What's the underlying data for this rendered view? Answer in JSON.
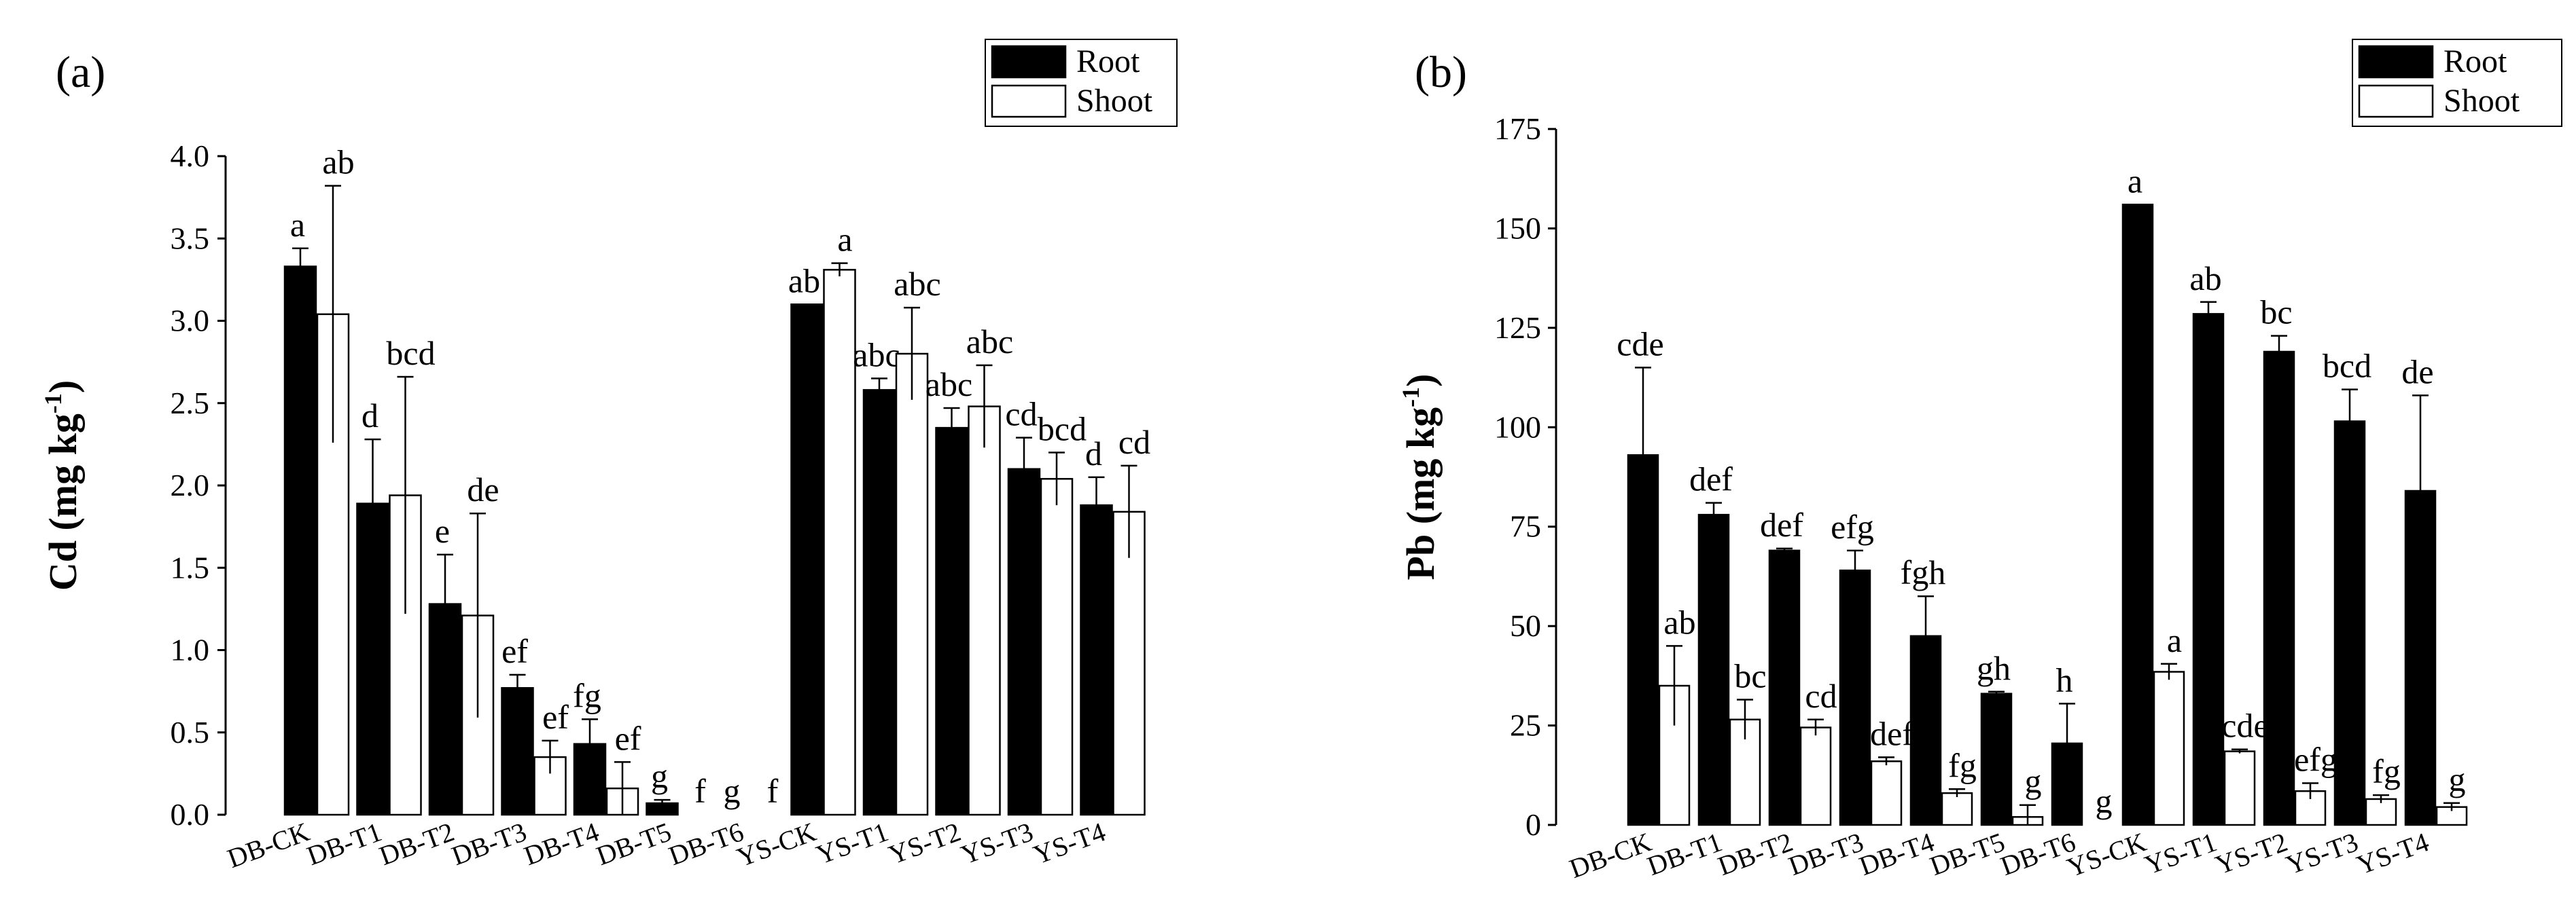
{
  "chart_data": [
    {
      "type": "bar",
      "panel_label": "(a)",
      "ylabel": "Cd (mg kg",
      "ylabel_sup": "-1",
      "ylabel_close": ")",
      "ylim": [
        0,
        4.0
      ],
      "yticks": [
        "0.0",
        "0.5",
        "1.0",
        "1.5",
        "2.0",
        "2.5",
        "3.0",
        "3.5",
        "4.0"
      ],
      "categories": [
        "DB-CK",
        "DB-T1",
        "DB-T2",
        "DB-T3",
        "DB-T4",
        "DB-T5",
        "DB-T6",
        "YS-CK",
        "YS-T1",
        "YS-T2",
        "YS-T3",
        "YS-T4"
      ],
      "legend": {
        "position": "top-right",
        "entries": [
          "Root",
          "Shoot"
        ]
      },
      "series": [
        {
          "name": "Root",
          "color": "#000000",
          "values": [
            3.33,
            1.89,
            1.28,
            0.77,
            0.43,
            0.07,
            0,
            3.1,
            2.58,
            2.35,
            2.1,
            1.88
          ],
          "errors": [
            0.11,
            0.39,
            0.3,
            0.08,
            0.15,
            0.02,
            0,
            0,
            0.07,
            0.12,
            0.19,
            0.17
          ],
          "letters": [
            "a",
            "d",
            "e",
            "ef",
            "fg",
            "g",
            "g",
            "ab",
            "abc",
            "abc",
            "cd",
            "d"
          ]
        },
        {
          "name": "Shoot",
          "color": "#ffffff",
          "values": [
            3.04,
            1.94,
            1.21,
            0.35,
            0.16,
            0,
            0,
            3.31,
            2.8,
            2.48,
            2.04,
            1.84
          ],
          "errors": [
            0.78,
            0.72,
            0.62,
            0.1,
            0.16,
            0,
            0,
            0.04,
            0.28,
            0.25,
            0.16,
            0.28
          ],
          "letters": [
            "ab",
            "bcd",
            "de",
            "ef",
            "ef",
            "f",
            "f",
            "a",
            "abc",
            "abc",
            "bcd",
            "cd"
          ]
        }
      ]
    },
    {
      "type": "bar",
      "panel_label": "(b)",
      "ylabel": "Pb (mg kg",
      "ylabel_sup": "-1",
      "ylabel_close": ")",
      "ylim": [
        0,
        175
      ],
      "yticks": [
        "0",
        "25",
        "50",
        "75",
        "100",
        "125",
        "150",
        "175"
      ],
      "categories": [
        "DB-CK",
        "DB-T1",
        "DB-T2",
        "DB-T3",
        "DB-T4",
        "DB-T5",
        "DB-T6",
        "YS-CK",
        "YS-T1",
        "YS-T2",
        "YS-T3",
        "YS-T4"
      ],
      "legend": {
        "position": "top-right",
        "entries": [
          "Root",
          "Shoot"
        ]
      },
      "series": [
        {
          "name": "Root",
          "color": "#000000",
          "values": [
            93,
            78,
            69,
            64,
            47.5,
            33,
            20.5,
            156,
            128.5,
            119,
            101.5,
            84
          ],
          "errors": [
            22,
            3,
            0.5,
            5,
            10,
            0.5,
            10,
            0,
            3,
            4,
            8,
            24
          ],
          "letters": [
            "cde",
            "def",
            "def",
            "efg",
            "fgh",
            "gh",
            "h",
            "a",
            "ab",
            "bc",
            "bcd",
            "de"
          ]
        },
        {
          "name": "Shoot",
          "color": "#ffffff",
          "values": [
            35,
            26.5,
            24.5,
            16,
            8,
            2,
            0,
            38.5,
            18.5,
            8.5,
            6.5,
            4.5
          ],
          "errors": [
            10,
            5,
            2,
            1,
            1,
            3,
            0,
            2,
            0.5,
            2,
            1,
            1
          ],
          "letters": [
            "ab",
            "bc",
            "cd",
            "def",
            "fg",
            "g",
            "g",
            "a",
            "cde",
            "efg",
            "fg",
            "g"
          ]
        }
      ]
    }
  ]
}
